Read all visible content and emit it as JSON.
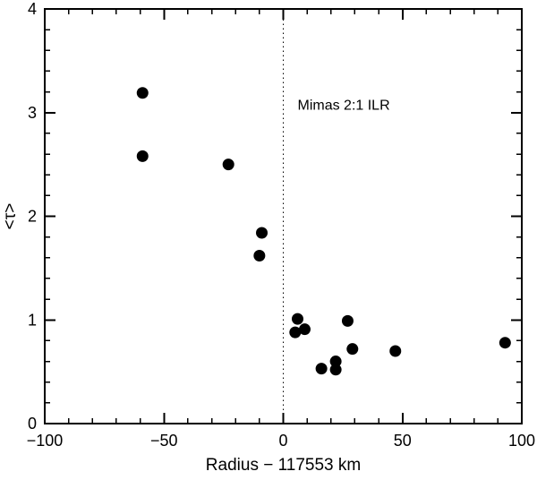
{
  "figure": {
    "background": "#ffffff",
    "foreground": "#000000"
  },
  "chart_data": {
    "type": "scatter",
    "title": "",
    "xlabel": "Radius − 117553 km",
    "ylabel": "<τ>",
    "xlim": [
      -100,
      100
    ],
    "ylim": [
      0,
      4
    ],
    "grid": false,
    "legend": null,
    "x_major_ticks": [
      -100,
      -50,
      0,
      50,
      100
    ],
    "x_tick_labels": [
      "−100",
      "−50",
      "0",
      "50",
      "100"
    ],
    "x_minor_step": 10,
    "y_major_ticks": [
      0,
      1,
      2,
      3,
      4
    ],
    "y_tick_labels": [
      "0",
      "1",
      "2",
      "3",
      "4"
    ],
    "y_minor_step": 0.2,
    "marker": {
      "shape": "circle",
      "color": "#000000",
      "radius_px": 6.5
    },
    "vline": {
      "x": 0,
      "style": "dotted",
      "color": "#000000"
    },
    "annotation": {
      "text": "Mimas 2:1 ILR",
      "x": 6,
      "y": 3.03
    },
    "points": [
      {
        "x": -59,
        "y": 3.19
      },
      {
        "x": -59,
        "y": 2.58
      },
      {
        "x": -23,
        "y": 2.5
      },
      {
        "x": -9,
        "y": 1.84
      },
      {
        "x": -10,
        "y": 1.62
      },
      {
        "x": 6,
        "y": 1.01
      },
      {
        "x": 5,
        "y": 0.88
      },
      {
        "x": 9,
        "y": 0.91
      },
      {
        "x": 16,
        "y": 0.53
      },
      {
        "x": 22,
        "y": 0.6
      },
      {
        "x": 22,
        "y": 0.52
      },
      {
        "x": 27,
        "y": 0.99
      },
      {
        "x": 29,
        "y": 0.72
      },
      {
        "x": 47,
        "y": 0.7
      },
      {
        "x": 93,
        "y": 0.78
      }
    ]
  }
}
